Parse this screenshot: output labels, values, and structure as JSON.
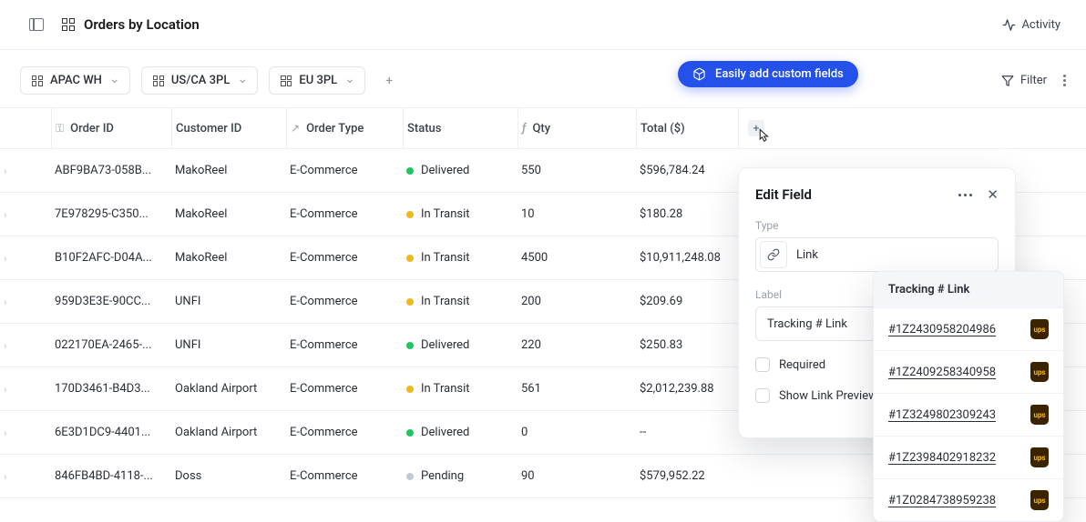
{
  "header": {
    "title": "Orders by Location",
    "activity_label": "Activity"
  },
  "tabs": {
    "items": [
      {
        "label": "APAC WH"
      },
      {
        "label": "US/CA 3PL"
      },
      {
        "label": "EU 3PL"
      }
    ],
    "filter_label": "Filter"
  },
  "callout": {
    "label": "Easily add custom fields"
  },
  "columns": {
    "order_id": "Order ID",
    "customer_id": "Customer ID",
    "order_type": "Order Type",
    "status": "Status",
    "qty": "Qty",
    "total": "Total ($)"
  },
  "rows": [
    {
      "order_id": "ABF9BA73-058B...",
      "customer_id": "MakoReel",
      "order_type": "E-Commerce",
      "status": "Delivered",
      "status_kind": "green",
      "qty": "550",
      "total": "$596,784.24"
    },
    {
      "order_id": "7E978295-C350...",
      "customer_id": "MakoReel",
      "order_type": "E-Commerce",
      "status": "In Transit",
      "status_kind": "yellow",
      "qty": "10",
      "total": "$180.28"
    },
    {
      "order_id": "B10F2AFC-D04A...",
      "customer_id": "MakoReel",
      "order_type": "E-Commerce",
      "status": "In Transit",
      "status_kind": "yellow",
      "qty": "4500",
      "total": "$10,911,248.08"
    },
    {
      "order_id": "959D3E3E-90CC...",
      "customer_id": "UNFI",
      "order_type": "E-Commerce",
      "status": "In Transit",
      "status_kind": "yellow",
      "qty": "200",
      "total": "$209.69"
    },
    {
      "order_id": "022170EA-2465-...",
      "customer_id": "UNFI",
      "order_type": "E-Commerce",
      "status": "Delivered",
      "status_kind": "green",
      "qty": "220",
      "total": "$250.83"
    },
    {
      "order_id": "170D3461-B4D3...",
      "customer_id": "Oakland Airport",
      "order_type": "E-Commerce",
      "status": "In Transit",
      "status_kind": "yellow",
      "qty": "561",
      "total": "$2,012,239.88"
    },
    {
      "order_id": "6E3D1DC9-4401...",
      "customer_id": "Oakland Airport",
      "order_type": "E-Commerce",
      "status": "Delivered",
      "status_kind": "green",
      "qty": "0",
      "total": "--"
    },
    {
      "order_id": "846FB4BD-4118-...",
      "customer_id": "Doss",
      "order_type": "E-Commerce",
      "status": "Pending",
      "status_kind": "gray",
      "qty": "90",
      "total": "$579,952.22"
    }
  ],
  "panel": {
    "title": "Edit Field",
    "type_label": "Type",
    "type_value": "Link",
    "label_label": "Label",
    "label_value": "Tracking # Link",
    "required_label": "Required",
    "preview_label": "Show Link Preview"
  },
  "popover": {
    "title": "Tracking # Link",
    "links": [
      "#1Z2430958204986",
      "#1Z2409258340958",
      "#1Z3249802309243",
      "#1Z2398402918232",
      "#1Z0284738959238"
    ],
    "carrier_badge": "ups"
  },
  "colors": {
    "accent": "#2551eb",
    "border": "#eceef2",
    "green": "#22c55e",
    "yellow": "#f1b81d",
    "gray": "#c3c9d4"
  }
}
